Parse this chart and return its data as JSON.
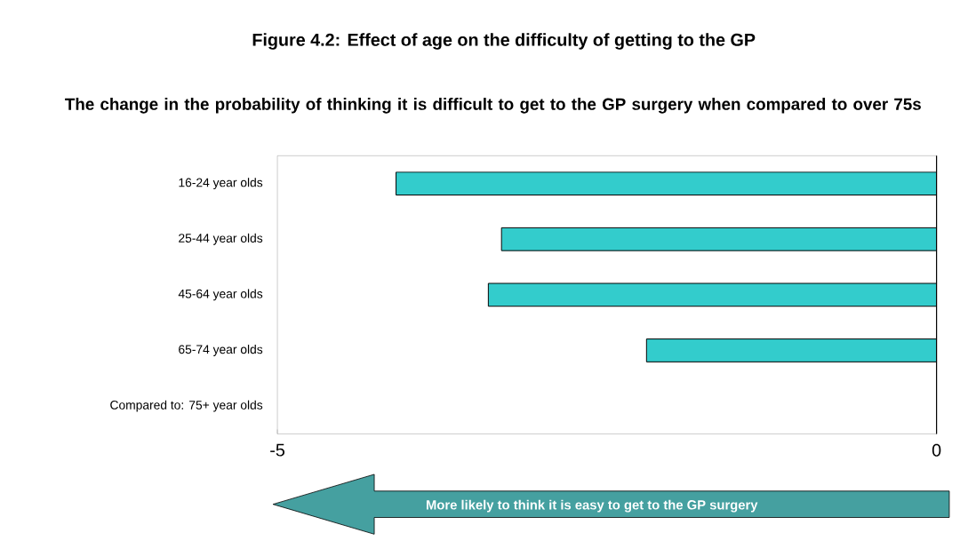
{
  "chart_data": {
    "type": "bar",
    "orientation": "horizontal",
    "title": "Figure 4.2: Effect of age on the difficulty of getting to the GP",
    "subtitle": "The change in the probability of thinking it is difficult to get to the GP surgery when compared to over 75s",
    "categories": [
      "16-24 year olds",
      "25-44 year olds",
      "45-64 year olds",
      "65-74 year olds",
      "Compared to: 75+ year olds"
    ],
    "values": [
      -4.1,
      -3.3,
      -3.4,
      -2.2,
      null
    ],
    "color": "#33cccc",
    "xlim": [
      -5,
      0
    ],
    "xticks": [
      -5,
      0
    ],
    "annotations": [
      "More likely to think it is easy to get to  the GP surgery"
    ]
  }
}
